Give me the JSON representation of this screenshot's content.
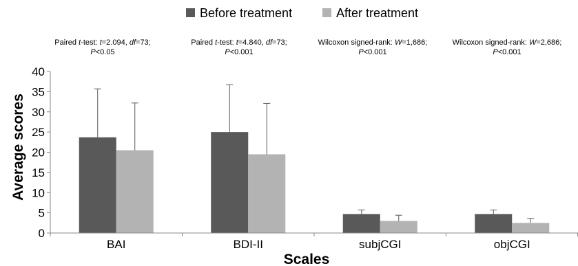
{
  "chart_data": {
    "type": "bar",
    "categories": [
      "BAI",
      "BDI-II",
      "subjCGI",
      "objCGI"
    ],
    "series": [
      {
        "name": "Before treatment",
        "color": "#595959",
        "values": [
          23.7,
          25.0,
          4.7,
          4.7
        ],
        "errors": [
          12.0,
          11.7,
          1.0,
          1.0
        ]
      },
      {
        "name": "After treatment",
        "color": "#b3b3b3",
        "values": [
          20.5,
          19.5,
          3.0,
          2.5
        ],
        "errors": [
          11.7,
          12.6,
          1.4,
          1.1
        ]
      }
    ],
    "xlabel": "Scales",
    "ylabel": "Average scores",
    "ylim": [
      0,
      40
    ],
    "yticks": [
      "0",
      "5",
      "10",
      "15",
      "20",
      "25",
      "30",
      "35",
      "40"
    ],
    "grid": false,
    "legend_position": "top",
    "annotations": [
      {
        "prefix": "Paired ",
        "stat_italic": "t",
        "middle": "-test: ",
        "var1": "t",
        "val1": "=2.094, ",
        "var2": "df",
        "val2": "=73;",
        "p_var": "P",
        "p_val": "<0.05"
      },
      {
        "prefix": "Paired ",
        "stat_italic": "t",
        "middle": "-test: ",
        "var1": "t",
        "val1": "=4.840, ",
        "var2": "df",
        "val2": "=73;",
        "p_var": "P",
        "p_val": "<0.001"
      },
      {
        "prefix": "",
        "stat_italic": "",
        "middle": "Wilcoxon signed-rank: ",
        "var1": "W",
        "val1": "=1,686;",
        "var2": "",
        "val2": "",
        "p_var": "P",
        "p_val": "<0.001"
      },
      {
        "prefix": "",
        "stat_italic": "",
        "middle": "Wilcoxon signed-rank: ",
        "var1": "W",
        "val1": "=2,686;",
        "var2": "",
        "val2": "",
        "p_var": "P",
        "p_val": "<0.001"
      }
    ]
  }
}
